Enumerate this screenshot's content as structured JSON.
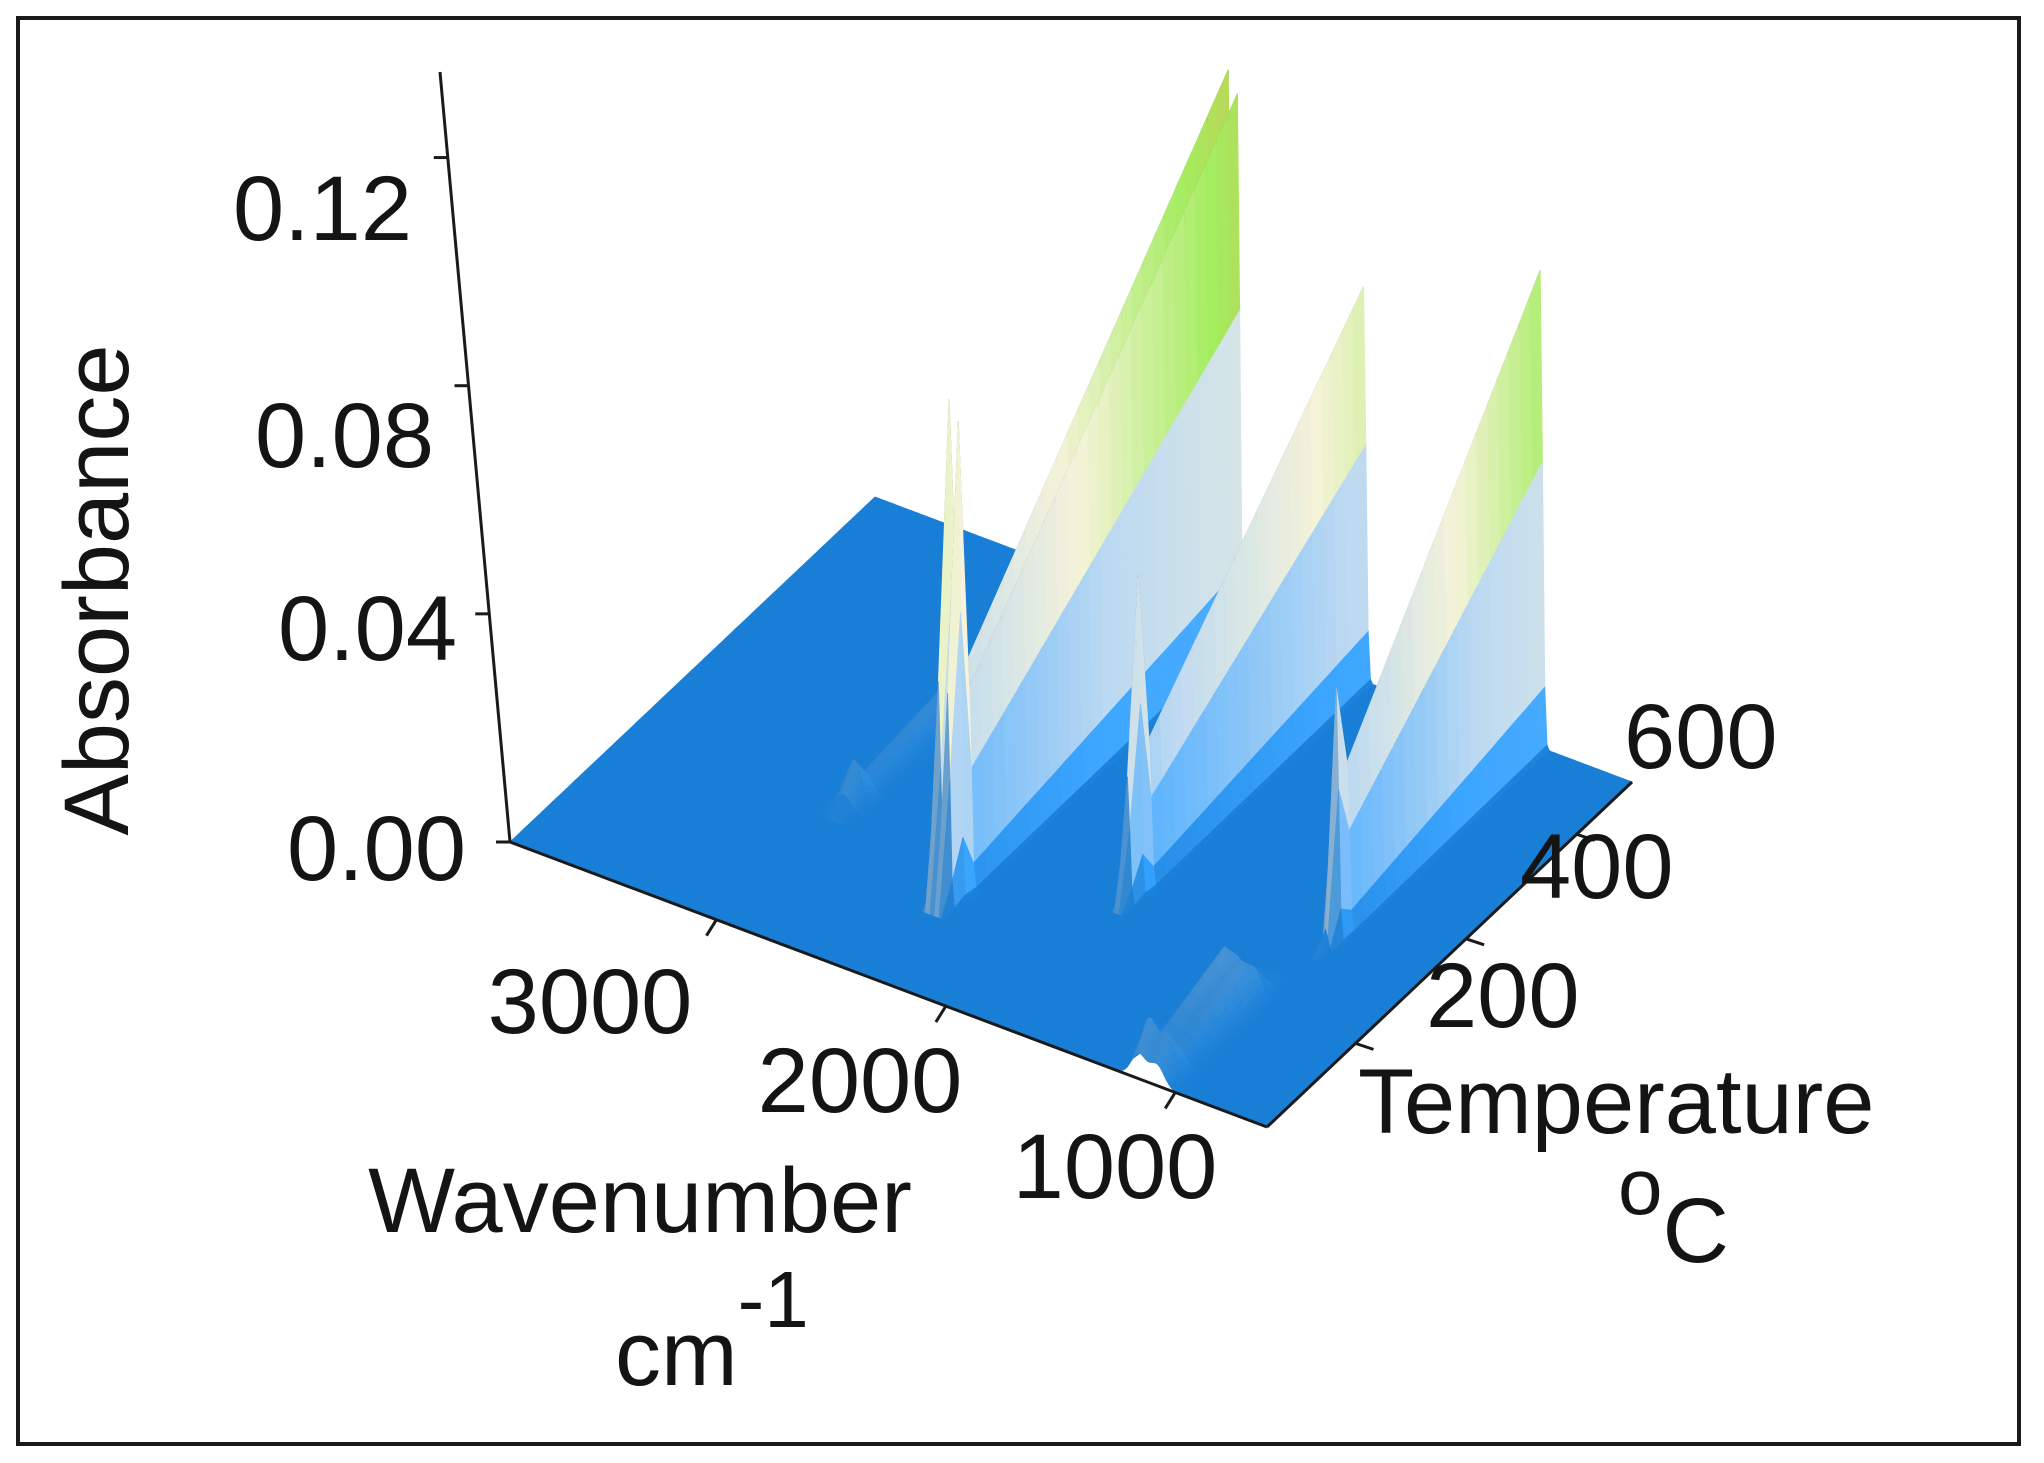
{
  "chart_data": {
    "type": "surface",
    "title": "",
    "x_axis": {
      "label": "Wavenumber",
      "unit_base": "cm",
      "unit_exponent": "-1",
      "ticks": [
        3000,
        2000,
        1000
      ],
      "range": [
        3900,
        600
      ]
    },
    "y_axis": {
      "label": "Temperature",
      "unit_prefix": "o",
      "unit_base": "C",
      "ticks": [
        200,
        400,
        600
      ],
      "range": [
        40,
        700
      ]
    },
    "z_axis": {
      "label": "Absorbance",
      "ticks": [
        "0.00",
        "0.04",
        "0.08",
        "0.12"
      ],
      "range": [
        0,
        0.13
      ]
    },
    "colormap": [
      "#1a7fd6",
      "#9ab2c6",
      "#c9c7b2",
      "#86c24e",
      "#b98f3c"
    ],
    "peaks": [
      {
        "wavenumber": 2960,
        "temperature_start": 280,
        "temperature_end": 700,
        "max_absorbance": 0.012
      },
      {
        "wavenumber": 2360,
        "temperature_start": 200,
        "temperature_end": 700,
        "max_absorbance": 0.135
      },
      {
        "wavenumber": 2320,
        "temperature_start": 200,
        "temperature_end": 700,
        "max_absorbance": 0.13
      },
      {
        "wavenumber": 1770,
        "temperature_start": 300,
        "temperature_end": 700,
        "max_absorbance": 0.095
      },
      {
        "wavenumber": 1160,
        "temperature_start": 60,
        "temperature_end": 200,
        "max_absorbance": 0.012
      },
      {
        "wavenumber": 1080,
        "temperature_start": 60,
        "temperature_end": 200,
        "max_absorbance": 0.01
      },
      {
        "wavenumber": 1000,
        "temperature_start": 350,
        "temperature_end": 700,
        "max_absorbance": 0.115
      }
    ]
  }
}
